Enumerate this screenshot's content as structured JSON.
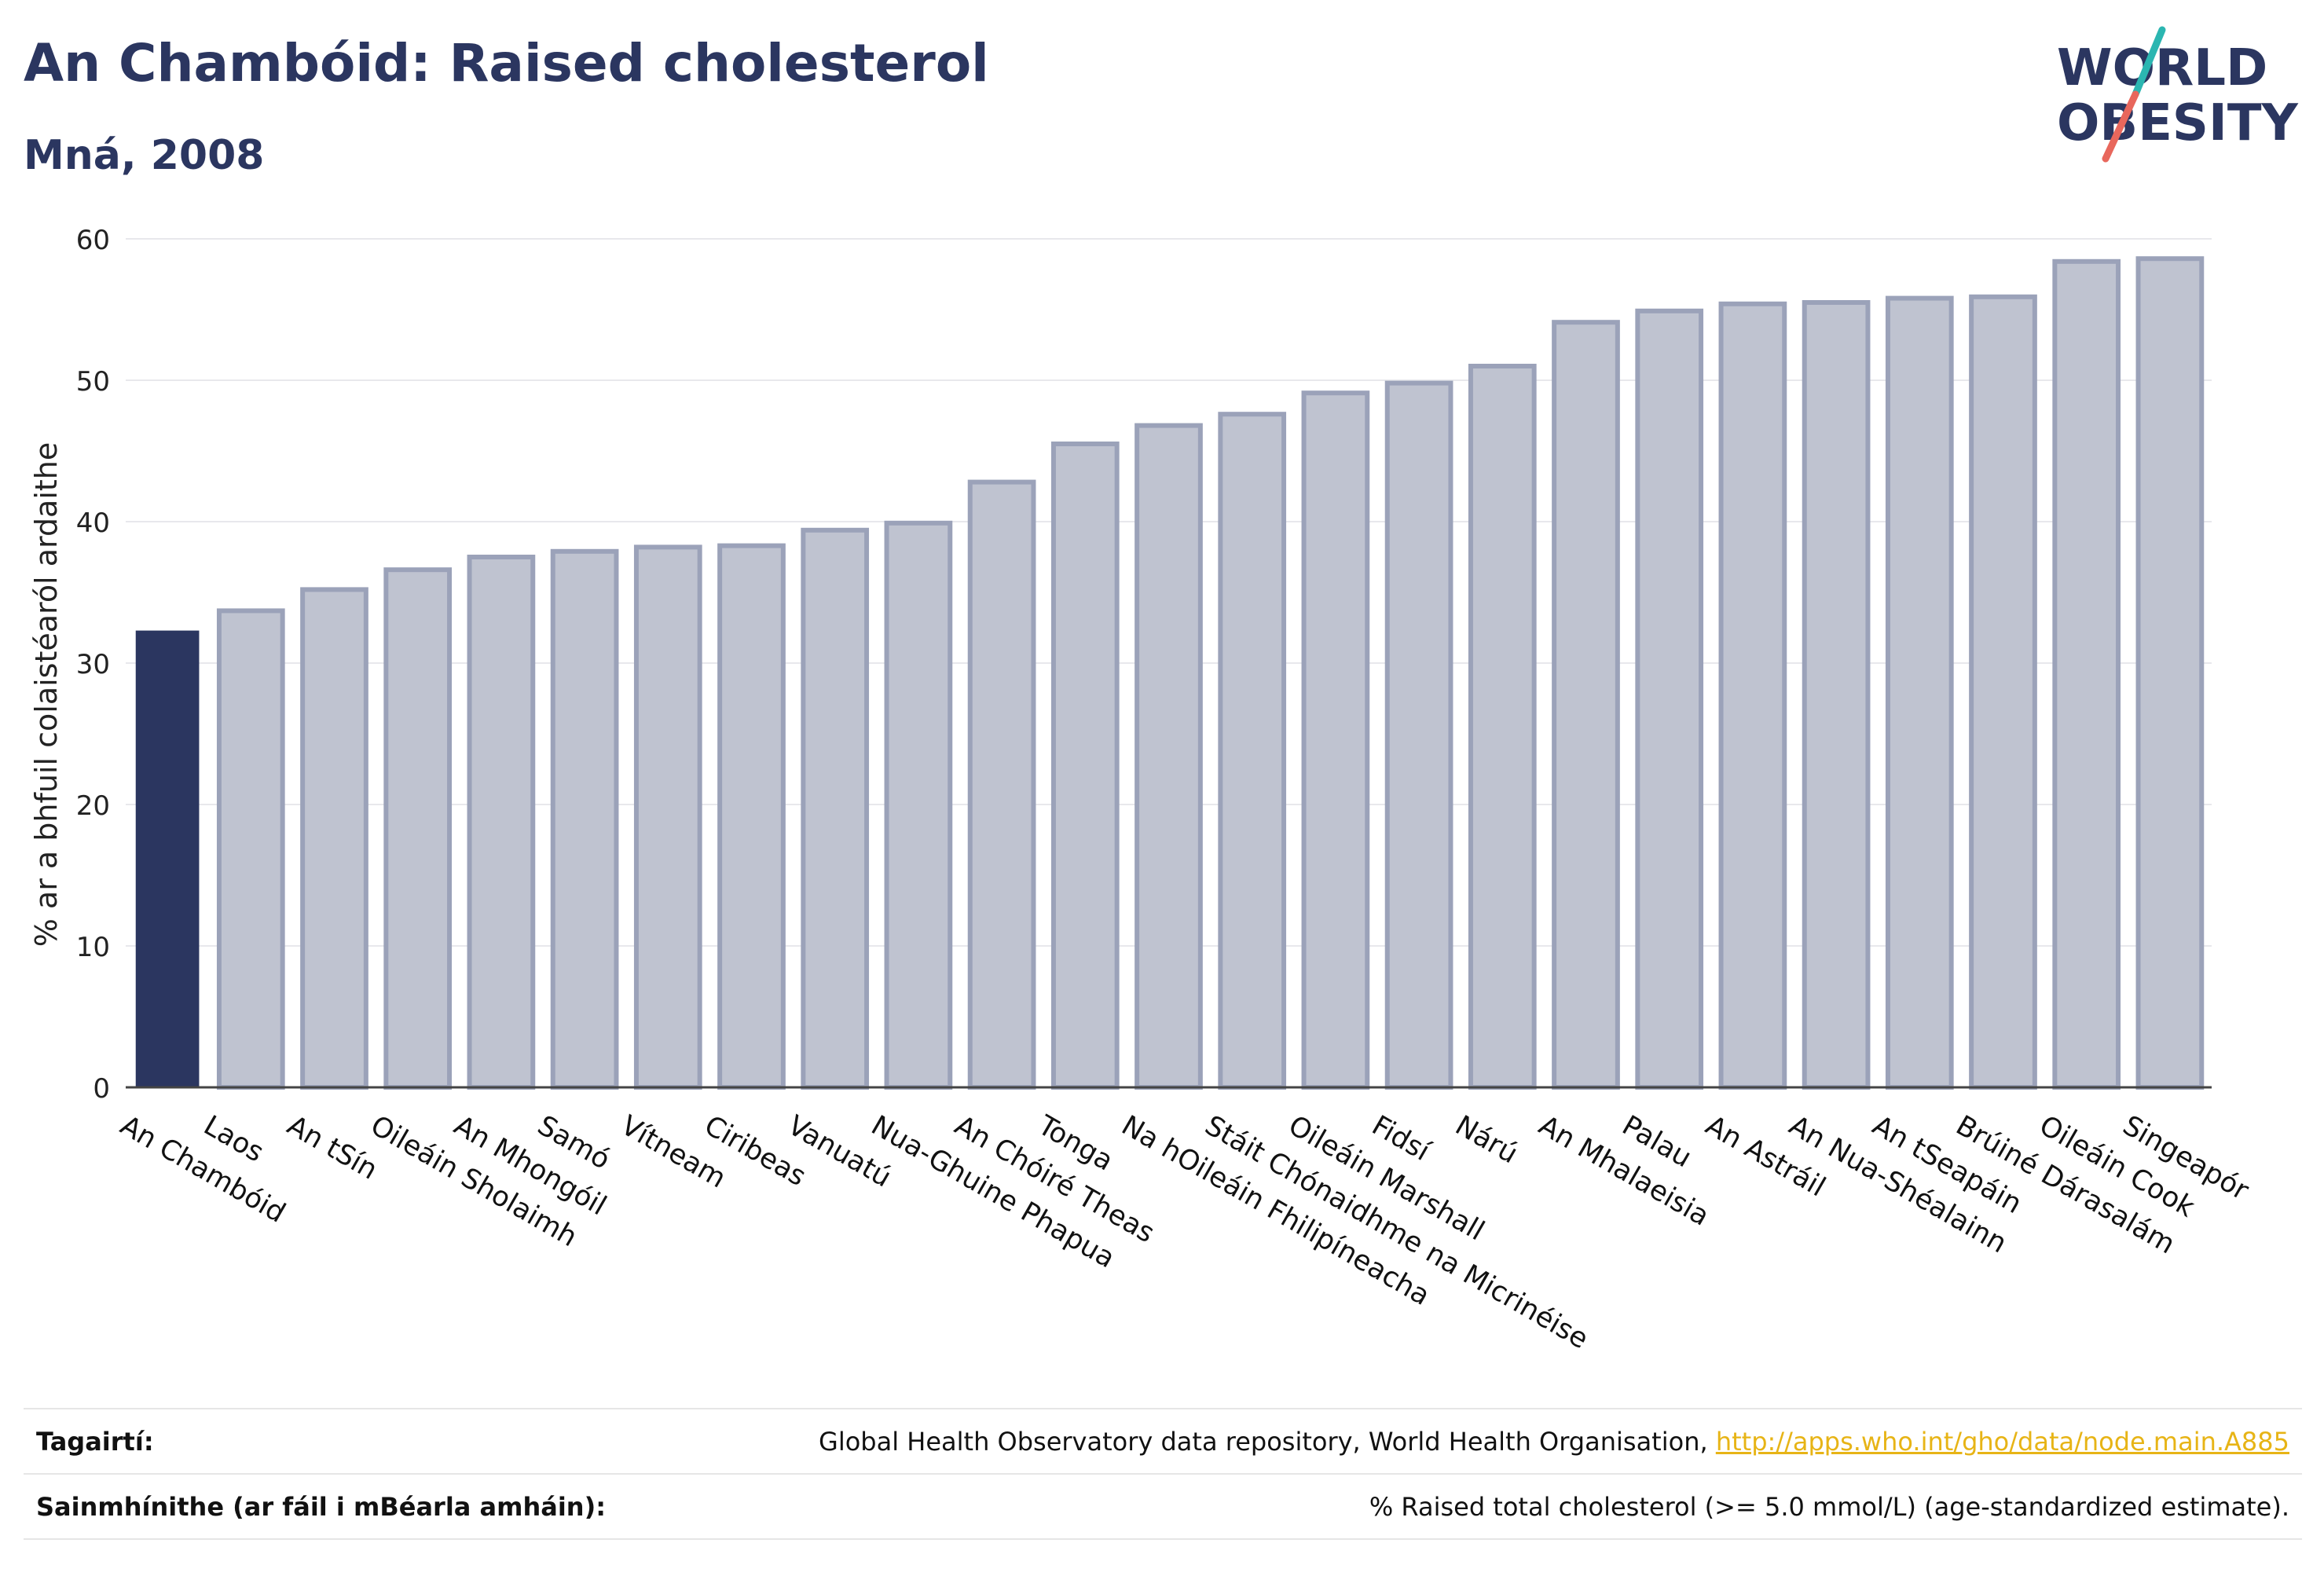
{
  "header": {
    "title": "An Chambóid: Raised cholesterol",
    "subtitle": "Mná, 2008"
  },
  "logo": {
    "line1": "WORLD",
    "line2": "OBESITY",
    "accent_colors": [
      "#2bb6b1",
      "#e8675c"
    ]
  },
  "chart_data": {
    "type": "bar",
    "title": "An Chambóid: Raised cholesterol",
    "subtitle": "Mná, 2008",
    "xlabel": "",
    "ylabel": "% ar a bhfuil colaistéaról ardaithe",
    "ylim": [
      0,
      60
    ],
    "yticks": [
      0,
      10,
      20,
      30,
      40,
      50,
      60
    ],
    "grid": true,
    "highlight_index": 0,
    "colors": {
      "highlight": "#2b3660",
      "bar_fill": "#bfc3d0",
      "bar_stroke": "#9ba2b9"
    },
    "categories": [
      "An Chambóid",
      "Laos",
      "An tSín",
      "Oileáin Sholaimh",
      "An Mhongóil",
      "Samó",
      "Vítneam",
      "Ciribeas",
      "Vanuatú",
      "Nua-Ghuine Phapua",
      "An Chóiré Theas",
      "Tonga",
      "Na hOileáin Fhilipíneacha",
      "Stáit Chónaidhme na Micrinéise",
      "Oileáin Marshall",
      "Fidsí",
      "Nárú",
      "An Mhalaeisia",
      "Palau",
      "An Astráil",
      "An Nua-Shéalainn",
      "An tSeapáin",
      "Brúiné Dárasalám",
      "Oileáin Cook",
      "Singeapór"
    ],
    "values": [
      32.3,
      33.7,
      35.2,
      36.6,
      37.5,
      37.9,
      38.2,
      38.3,
      39.4,
      39.9,
      42.8,
      45.5,
      46.8,
      47.6,
      49.1,
      49.8,
      51.0,
      54.1,
      54.9,
      55.4,
      55.5,
      55.8,
      55.9,
      58.4,
      58.6
    ]
  },
  "footer": {
    "references_label": "Tagairtí:",
    "references_text": "Global Health Observatory data repository, World Health Organisation, ",
    "references_link": "http://apps.who.int/gho/data/node.main.A885",
    "definitions_label": "Sainmhínithe (ar fáil i mBéarla amháin):",
    "definitions_text": "% Raised total cholesterol (>= 5.0 mmol/L) (age-standardized estimate)."
  }
}
